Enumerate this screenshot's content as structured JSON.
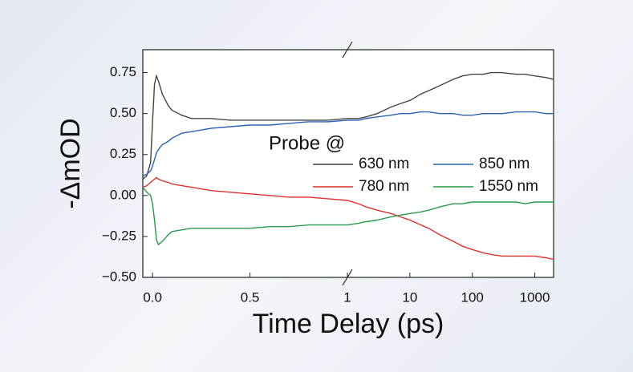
{
  "chart_data": {
    "type": "line",
    "xlabel": "Time Delay (ps)",
    "ylabel": "-ΔmOD",
    "legend_title": "Probe @",
    "x": [
      -0.05,
      -0.03,
      -0.01,
      0,
      0.01,
      0.02,
      0.03,
      0.05,
      0.08,
      0.1,
      0.15,
      0.2,
      0.3,
      0.4,
      0.5,
      0.6,
      0.7,
      0.8,
      0.9,
      1,
      1.5,
      2,
      3,
      5,
      7,
      10,
      15,
      20,
      30,
      50,
      70,
      100,
      150,
      200,
      300,
      500,
      700,
      1000,
      1500,
      2000
    ],
    "series": [
      {
        "name": "630 nm",
        "color": "#444444",
        "values": [
          0.1,
          0.12,
          0.2,
          0.45,
          0.68,
          0.73,
          0.7,
          0.62,
          0.55,
          0.52,
          0.49,
          0.47,
          0.47,
          0.46,
          0.46,
          0.46,
          0.46,
          0.46,
          0.46,
          0.47,
          0.47,
          0.48,
          0.5,
          0.54,
          0.56,
          0.58,
          0.62,
          0.64,
          0.67,
          0.71,
          0.73,
          0.74,
          0.74,
          0.75,
          0.75,
          0.74,
          0.74,
          0.73,
          0.72,
          0.71
        ]
      },
      {
        "name": "850 nm",
        "color": "#2a62b0",
        "values": [
          0.12,
          0.13,
          0.15,
          0.18,
          0.22,
          0.26,
          0.28,
          0.31,
          0.33,
          0.35,
          0.38,
          0.39,
          0.41,
          0.42,
          0.43,
          0.43,
          0.44,
          0.45,
          0.45,
          0.46,
          0.46,
          0.47,
          0.48,
          0.49,
          0.5,
          0.5,
          0.51,
          0.51,
          0.5,
          0.5,
          0.49,
          0.49,
          0.5,
          0.5,
          0.5,
          0.51,
          0.51,
          0.51,
          0.5,
          0.5
        ]
      },
      {
        "name": "780 nm",
        "color": "#e0302c",
        "values": [
          0.05,
          0.06,
          0.08,
          0.09,
          0.1,
          0.11,
          0.1,
          0.09,
          0.08,
          0.07,
          0.06,
          0.05,
          0.03,
          0.02,
          0.01,
          0.0,
          -0.01,
          -0.01,
          -0.02,
          -0.03,
          -0.05,
          -0.07,
          -0.09,
          -0.11,
          -0.13,
          -0.15,
          -0.18,
          -0.2,
          -0.24,
          -0.28,
          -0.31,
          -0.33,
          -0.35,
          -0.36,
          -0.37,
          -0.37,
          -0.37,
          -0.37,
          -0.38,
          -0.39
        ]
      },
      {
        "name": "1550 nm",
        "color": "#2a9a4c",
        "values": [
          0.05,
          0.02,
          0.0,
          -0.05,
          -0.15,
          -0.27,
          -0.3,
          -0.28,
          -0.24,
          -0.22,
          -0.21,
          -0.2,
          -0.2,
          -0.2,
          -0.2,
          -0.19,
          -0.19,
          -0.18,
          -0.18,
          -0.18,
          -0.17,
          -0.16,
          -0.15,
          -0.13,
          -0.12,
          -0.11,
          -0.1,
          -0.09,
          -0.07,
          -0.05,
          -0.05,
          -0.04,
          -0.04,
          -0.04,
          -0.04,
          -0.04,
          -0.05,
          -0.04,
          -0.04,
          -0.04
        ]
      }
    ],
    "xlim": [
      -0.05,
      2000
    ],
    "xbreak": 1,
    "xscale": [
      "linear",
      "log"
    ],
    "xticks": [
      {
        "value": 0,
        "label": "0.0"
      },
      0.5,
      1,
      10,
      100,
      1000
    ],
    "ylim": [
      -0.5,
      0.89
    ],
    "yticks": [
      {
        "value": -0.5,
        "label": "−0.50"
      },
      {
        "value": -0.25,
        "label": "−0.25"
      },
      {
        "value": 0,
        "label": "0.00"
      },
      {
        "value": 0.25,
        "label": "0.25"
      },
      {
        "value": 0.5,
        "label": "0.50"
      },
      {
        "value": 0.75,
        "label": "0.75"
      }
    ]
  }
}
